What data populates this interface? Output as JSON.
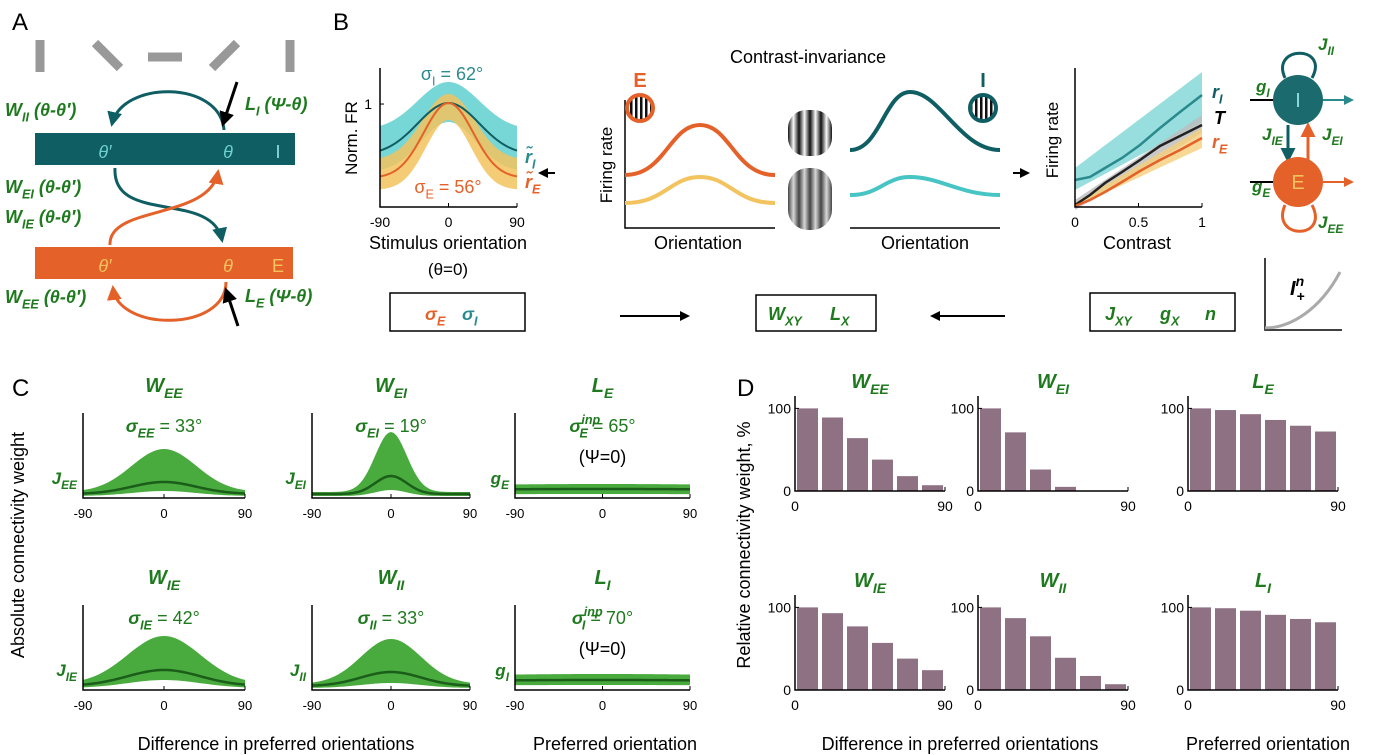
{
  "panel_labels": [
    "A",
    "B",
    "C",
    "D"
  ],
  "panel_a": {
    "ring_i": {
      "theta_prime": "θ′",
      "theta": "θ",
      "name": "I"
    },
    "ring_e": {
      "theta_prime": "θ′",
      "theta": "θ",
      "name": "E"
    },
    "w_ii": {
      "t": "W",
      "s": "II",
      "r": " (θ-θ′)"
    },
    "l_i": {
      "t": "L",
      "s": "I",
      "r": " (Ψ-θ)"
    },
    "w_ei": {
      "t": "W",
      "s": "EI",
      "r": " (θ-θ′)"
    },
    "w_ie": {
      "t": "W",
      "s": "IE",
      "r": " (θ-θ′)"
    },
    "w_ee": {
      "t": "W",
      "s": "EE",
      "r": " (θ-θ′)"
    },
    "l_e": {
      "t": "L",
      "s": "E",
      "r": " (Ψ-θ)"
    }
  },
  "panel_b": {
    "title": "Contrast-invariance",
    "tuning": {
      "ylabel": "Norm. FR",
      "xlabel": "Stimulus orientation",
      "xnote": "(θ=0)",
      "xlim": [
        -90,
        90
      ],
      "xticks": [
        -90,
        0,
        90
      ],
      "ylim": [
        0,
        1.35
      ],
      "yticks": [
        1
      ],
      "sigma_i": {
        "t": "σ",
        "s": "I",
        "r": " = 62°"
      },
      "sigma_e": {
        "t": "σ",
        "s": "E",
        "r": " = 56°"
      },
      "r_i": {
        "t": "r̃",
        "s": "I"
      },
      "r_e": {
        "t": "r̃",
        "s": "E"
      }
    },
    "schematic": {
      "ylabel": "Firing rate",
      "xlabel_e": "Orientation",
      "xlabel_i": "Orientation",
      "e": "E",
      "i": "I"
    },
    "contrast": {
      "ylabel": "Firing rate",
      "xlabel": "Contrast",
      "xlim": [
        0,
        1
      ],
      "xticks": [
        0,
        0.5,
        1
      ],
      "r_i": {
        "t": "r",
        "s": "I"
      },
      "t": "T",
      "r_e": {
        "t": "r",
        "s": "E"
      }
    },
    "circuit": {
      "j_ii": {
        "t": "J",
        "s": "II"
      },
      "g_i": {
        "t": "g",
        "s": "I"
      },
      "j_ie": {
        "t": "J",
        "s": "IE"
      },
      "j_ei": {
        "t": "J",
        "s": "EI"
      },
      "g_e": {
        "t": "g",
        "s": "E"
      },
      "j_ee": {
        "t": "J",
        "s": "EE"
      },
      "i": "I",
      "e": "E",
      "nonlin": {
        "t": "I",
        "p": "n",
        "s": "+"
      }
    },
    "boxes": {
      "sigma_e": {
        "t": "σ",
        "s": "E"
      },
      "sigma_i": {
        "t": "σ",
        "s": "I"
      },
      "w": {
        "t": "W",
        "s": "XY"
      },
      "l": {
        "t": "L",
        "s": "X"
      },
      "j": {
        "t": "J",
        "s": "XY"
      },
      "g": {
        "t": "g",
        "s": "X"
      },
      "n": {
        "t": "n"
      }
    }
  },
  "panel_c": {
    "ylabel": "Absolute connectivity weight",
    "xlabel_diff": "Difference in preferred orientations",
    "xlabel_pref": "Preferred orientation",
    "xlim": [
      -90,
      90
    ],
    "xticks": [
      -90,
      0,
      90
    ],
    "plots": [
      {
        "title": {
          "t": "W",
          "s": "EE"
        },
        "sigma": {
          "t": "σ",
          "s": "EE",
          "r": " = 33°"
        },
        "gain": {
          "t": "J",
          "s": "EE"
        }
      },
      {
        "title": {
          "t": "W",
          "s": "EI"
        },
        "sigma": {
          "t": "σ",
          "s": "EI",
          "r": " = 19°"
        },
        "gain": {
          "t": "J",
          "s": "EI"
        }
      },
      {
        "title": {
          "t": "L",
          "s": "E"
        },
        "sigma": {
          "t": "σ",
          "p": "inp",
          "s": "E",
          "r": " = 65°"
        },
        "psi": "(Ψ=0)",
        "gain": {
          "t": "g",
          "s": "E"
        }
      },
      {
        "title": {
          "t": "W",
          "s": "IE"
        },
        "sigma": {
          "t": "σ",
          "s": "IE",
          "r": " = 42°"
        },
        "gain": {
          "t": "J",
          "s": "IE"
        }
      },
      {
        "title": {
          "t": "W",
          "s": "II"
        },
        "sigma": {
          "t": "σ",
          "s": "II",
          "r": " = 33°"
        },
        "gain": {
          "t": "J",
          "s": "II"
        }
      },
      {
        "title": {
          "t": "L",
          "s": "I"
        },
        "sigma": {
          "t": "σ",
          "p": "inp",
          "s": "I",
          "r": " = 70°"
        },
        "psi": "(Ψ=0)",
        "gain": {
          "t": "g",
          "s": "I"
        }
      }
    ]
  },
  "panel_d": {
    "ylabel": "Relative connectivity weight, %",
    "xlabel_diff": "Difference in preferred orientations",
    "xlabel_pref": "Preferred orientation"
  },
  "chart_data": [
    {
      "type": "histogram",
      "title": {
        "t": "W",
        "s": "EE"
      },
      "bins": [
        0,
        15,
        30,
        45,
        60,
        75,
        90
      ],
      "values": [
        100,
        89,
        64,
        38,
        18,
        7
      ],
      "color": "#8e7283",
      "xlim": [
        0,
        90
      ],
      "xticks": [
        0,
        90
      ],
      "ylim": [
        0,
        115
      ],
      "yticks": [
        0,
        100
      ]
    },
    {
      "type": "histogram",
      "title": {
        "t": "W",
        "s": "EI"
      },
      "bins": [
        0,
        15,
        30,
        45,
        60,
        75,
        90
      ],
      "values": [
        100,
        71,
        26,
        5,
        0,
        0
      ],
      "color": "#8e7283",
      "xlim": [
        0,
        90
      ],
      "xticks": [
        0,
        90
      ],
      "ylim": [
        0,
        115
      ],
      "yticks": [
        0,
        100
      ]
    },
    {
      "type": "histogram",
      "title": {
        "t": "L",
        "s": "E"
      },
      "bins": [
        0,
        15,
        30,
        45,
        60,
        75,
        90
      ],
      "values": [
        100,
        98,
        93,
        86,
        79,
        72
      ],
      "color": "#8e7283",
      "xlim": [
        0,
        90
      ],
      "xticks": [
        0,
        90
      ],
      "ylim": [
        0,
        115
      ],
      "yticks": [
        0,
        100
      ]
    },
    {
      "type": "histogram",
      "title": {
        "t": "W",
        "s": "IE"
      },
      "bins": [
        0,
        15,
        30,
        45,
        60,
        75,
        90
      ],
      "values": [
        100,
        93,
        77,
        57,
        38,
        24
      ],
      "color": "#8e7283",
      "xlim": [
        0,
        90
      ],
      "xticks": [
        0,
        90
      ],
      "ylim": [
        0,
        115
      ],
      "yticks": [
        0,
        100
      ]
    },
    {
      "type": "histogram",
      "title": {
        "t": "W",
        "s": "II"
      },
      "bins": [
        0,
        15,
        30,
        45,
        60,
        75,
        90
      ],
      "values": [
        100,
        87,
        65,
        39,
        17,
        7
      ],
      "color": "#8e7283",
      "xlim": [
        0,
        90
      ],
      "xticks": [
        0,
        90
      ],
      "ylim": [
        0,
        115
      ],
      "yticks": [
        0,
        100
      ]
    },
    {
      "type": "histogram",
      "title": {
        "t": "L",
        "s": "I"
      },
      "bins": [
        0,
        15,
        30,
        45,
        60,
        75,
        90
      ],
      "values": [
        100,
        99,
        96,
        91,
        86,
        82
      ],
      "color": "#8e7283",
      "xlim": [
        0,
        90
      ],
      "xticks": [
        0,
        90
      ],
      "ylim": [
        0,
        115
      ],
      "yticks": [
        0,
        100
      ]
    }
  ]
}
